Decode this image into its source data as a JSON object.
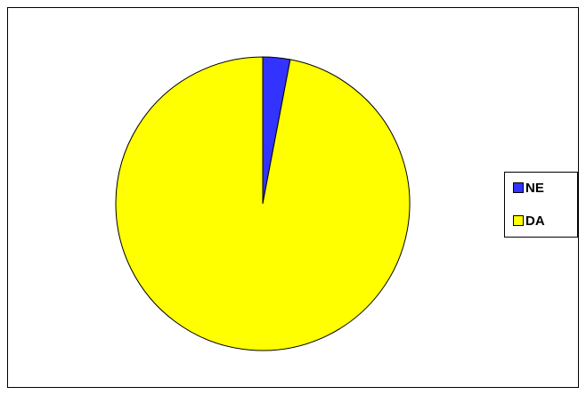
{
  "chart_data": {
    "type": "pie",
    "categories": [
      "NE",
      "DA"
    ],
    "values": [
      3,
      97
    ],
    "colors": [
      "#3333ff",
      "#ffff00"
    ],
    "legend": "right"
  }
}
